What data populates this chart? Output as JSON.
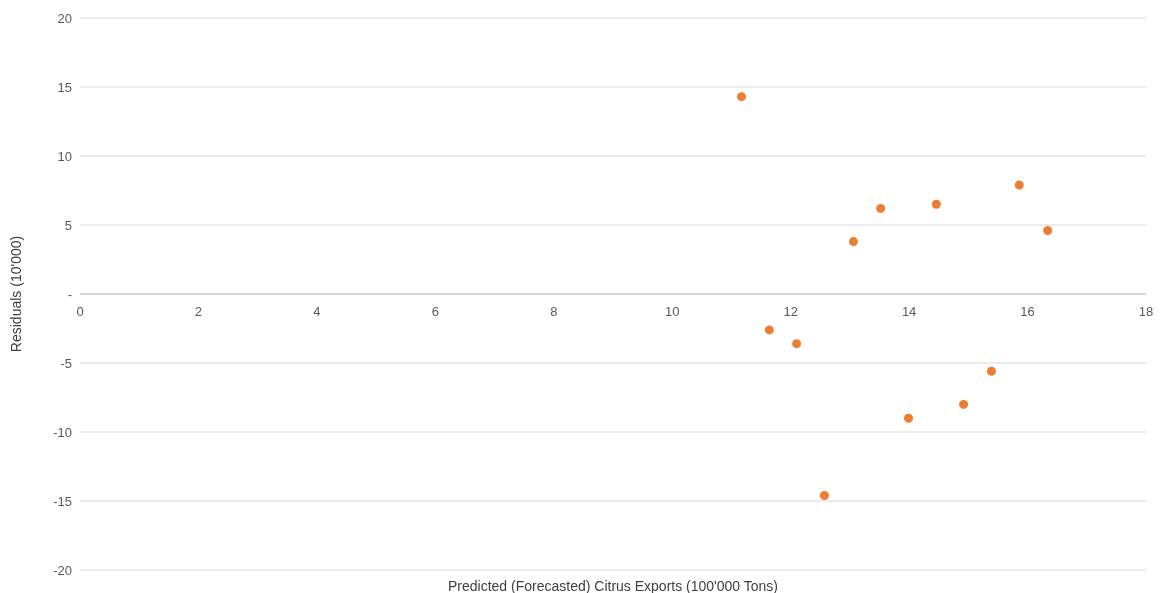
{
  "chart_data": {
    "type": "scatter",
    "xlabel": "Predicted (Forecasted) Citrus Exports (100'000 Tons)",
    "ylabel": "Residuals (10'000)",
    "x": [
      11.17,
      11.64,
      12.1,
      12.57,
      13.06,
      13.52,
      13.99,
      14.46,
      14.92,
      15.39,
      15.86,
      16.34
    ],
    "series": [
      {
        "color": "#ed7d31",
        "values": [
          14.3,
          -2.6,
          -3.6,
          -14.6,
          3.8,
          6.2,
          -9.0,
          6.5,
          -8.0,
          -5.6,
          7.9,
          4.6
        ]
      }
    ],
    "xlim": [
      0,
      18
    ],
    "xticks": [
      0,
      2,
      4,
      6,
      8,
      10,
      12,
      14,
      16,
      18
    ],
    "ylim": [
      -20,
      20
    ],
    "yticks": [
      -20,
      -15,
      -10,
      -5,
      {
        "value": 0,
        "label": "-"
      },
      5,
      10,
      15,
      20
    ],
    "grid": "y",
    "marker": "circle"
  }
}
